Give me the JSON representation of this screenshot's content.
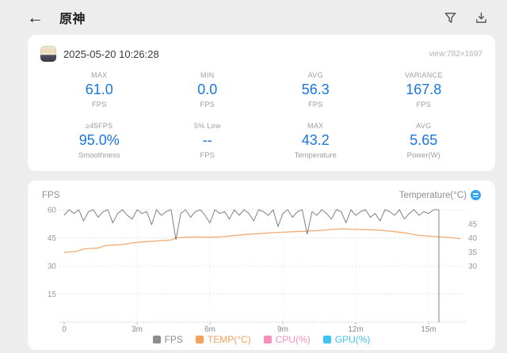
{
  "header": {
    "title": "原神"
  },
  "toolbar": {
    "filter_icon": "filter-icon",
    "download_icon": "download-icon",
    "back_glyph": "←"
  },
  "summary": {
    "timestamp": "2025-05-20 10:26:28",
    "view": "view:782×1697",
    "stats": [
      {
        "label": "MAX",
        "value": "61.0",
        "unit": "FPS"
      },
      {
        "label": "MIN",
        "value": "0.0",
        "unit": "FPS"
      },
      {
        "label": "AVG",
        "value": "56.3",
        "unit": "FPS"
      },
      {
        "label": "VARIANCE",
        "value": "167.8",
        "unit": "FPS"
      },
      {
        "label": "≥45FPS",
        "value": "95.0%",
        "unit": "Smoothness"
      },
      {
        "label": "5% Low",
        "value": "--",
        "unit": "FPS"
      },
      {
        "label": "MAX",
        "value": "43.2",
        "unit": "Temperature"
      },
      {
        "label": "AVG",
        "value": "5.65",
        "unit": "Power(W)"
      }
    ]
  },
  "chart": {
    "left_axis_title": "FPS",
    "right_axis_title": "Temperature(°C)"
  },
  "colors": {
    "value_blue": "#1876e2",
    "toggle_blue": "#36a3f0"
  },
  "chart_data": {
    "type": "line",
    "title": "FPS / Temperature over time",
    "x_axis": {
      "unit": "minutes",
      "range": [
        0,
        16.3
      ],
      "ticks": [
        {
          "t": 0,
          "label": "0"
        },
        {
          "t": 3,
          "label": "3m"
        },
        {
          "t": 6,
          "label": "6m"
        },
        {
          "t": 9,
          "label": "9m"
        },
        {
          "t": 12,
          "label": "12m"
        },
        {
          "t": 15,
          "label": "15m"
        }
      ]
    },
    "fps_axis": {
      "label": "FPS",
      "range": [
        0,
        60
      ],
      "ticks": [
        60,
        45,
        30,
        15
      ]
    },
    "temp_axis": {
      "label": "Temperature(°C)",
      "ticks": [
        45,
        40,
        35,
        30
      ]
    },
    "series": [
      {
        "name": "FPS",
        "color": "#808080",
        "axis": "fps",
        "t0": 0,
        "dt": 0.2,
        "values": [
          57,
          60,
          58,
          60,
          54,
          59,
          60,
          56,
          59,
          60,
          53,
          58,
          60,
          57,
          55,
          60,
          58,
          59,
          52,
          60,
          57,
          59,
          60,
          44,
          58,
          60,
          56,
          59,
          60,
          57,
          53,
          60,
          58,
          59,
          55,
          60,
          57,
          60,
          58,
          54,
          60,
          59,
          57,
          60,
          51,
          58,
          60,
          56,
          59,
          60,
          47,
          59,
          57,
          60,
          58,
          55,
          60,
          59,
          53,
          60,
          57,
          59,
          60,
          56,
          58,
          54,
          60,
          59,
          57,
          60,
          55,
          58,
          60,
          57,
          59,
          58,
          60
        ],
        "tail": [
          [
            15.3,
            60
          ],
          [
            15.42,
            60
          ],
          [
            15.42,
            0
          ]
        ]
      },
      {
        "name": "TEMP(°C)",
        "color": "#f0ab72",
        "axis": "temp",
        "points": [
          [
            0,
            34.8
          ],
          [
            0.2,
            35.0
          ],
          [
            0.5,
            35.2
          ],
          [
            0.8,
            36.0
          ],
          [
            1.0,
            36.2
          ],
          [
            1.4,
            36.4
          ],
          [
            1.7,
            37.2
          ],
          [
            2.0,
            37.4
          ],
          [
            2.4,
            37.6
          ],
          [
            2.8,
            38.2
          ],
          [
            3.2,
            38.5
          ],
          [
            3.6,
            38.8
          ],
          [
            4.0,
            39.0
          ],
          [
            4.4,
            39.2
          ],
          [
            4.6,
            40.0
          ],
          [
            5.0,
            40.2
          ],
          [
            5.5,
            40.3
          ],
          [
            6.0,
            40.2
          ],
          [
            6.5,
            40.4
          ],
          [
            7.0,
            40.8
          ],
          [
            7.5,
            41.2
          ],
          [
            8.0,
            41.5
          ],
          [
            8.5,
            41.8
          ],
          [
            9.0,
            42.0
          ],
          [
            9.5,
            42.2
          ],
          [
            10.0,
            42.4
          ],
          [
            10.5,
            42.6
          ],
          [
            11.0,
            43.0
          ],
          [
            11.5,
            43.2
          ],
          [
            12.0,
            43.0
          ],
          [
            12.5,
            42.9
          ],
          [
            13.0,
            42.7
          ],
          [
            13.5,
            42.3
          ],
          [
            14.0,
            41.8
          ],
          [
            14.5,
            41.0
          ],
          [
            15.0,
            40.6
          ],
          [
            15.5,
            40.3
          ],
          [
            16.0,
            40.0
          ],
          [
            16.3,
            39.7
          ]
        ]
      }
    ],
    "legend": [
      {
        "label": "FPS",
        "color": "#8e8e8e"
      },
      {
        "label": "TEMP(°C)",
        "color": "#f5a15c"
      },
      {
        "label": "CPU(%)",
        "color": "#f78fb9"
      },
      {
        "label": "GPU(%)",
        "color": "#3fc3f2"
      }
    ],
    "legend_position": "bottom",
    "grid": "dotted"
  }
}
